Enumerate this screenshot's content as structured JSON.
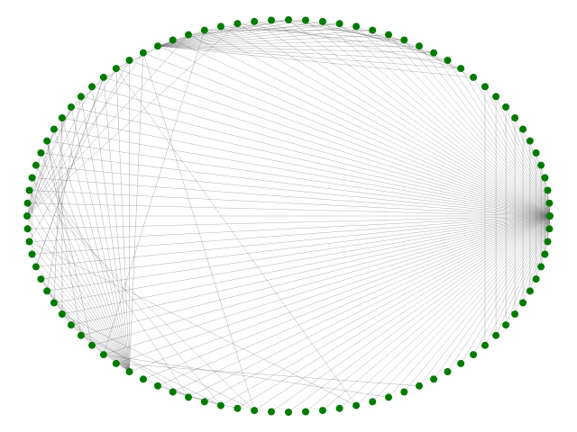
{
  "graph": {
    "layout": "circular",
    "node_count": 96,
    "node_color": "#007a00",
    "edge_color": "#6e6e6e",
    "background": "#ffffff",
    "hub_node": 24,
    "edges": [
      [
        24,
        0
      ],
      [
        24,
        1
      ],
      [
        24,
        2
      ],
      [
        24,
        3
      ],
      [
        24,
        4
      ],
      [
        24,
        5
      ],
      [
        24,
        6
      ],
      [
        24,
        7
      ],
      [
        24,
        8
      ],
      [
        24,
        9
      ],
      [
        24,
        10
      ],
      [
        24,
        11
      ],
      [
        24,
        12
      ],
      [
        24,
        13
      ],
      [
        24,
        14
      ],
      [
        24,
        15
      ],
      [
        24,
        16
      ],
      [
        24,
        17
      ],
      [
        24,
        18
      ],
      [
        24,
        19
      ],
      [
        24,
        20
      ],
      [
        24,
        21
      ],
      [
        24,
        22
      ],
      [
        24,
        23
      ],
      [
        24,
        25
      ],
      [
        24,
        26
      ],
      [
        24,
        27
      ],
      [
        24,
        28
      ],
      [
        24,
        29
      ],
      [
        24,
        30
      ],
      [
        24,
        31
      ],
      [
        24,
        32
      ],
      [
        24,
        33
      ],
      [
        24,
        34
      ],
      [
        24,
        35
      ],
      [
        24,
        36
      ],
      [
        24,
        37
      ],
      [
        24,
        38
      ],
      [
        24,
        39
      ],
      [
        24,
        40
      ],
      [
        24,
        41
      ],
      [
        24,
        42
      ],
      [
        24,
        43
      ],
      [
        24,
        44
      ],
      [
        24,
        45
      ],
      [
        24,
        46
      ],
      [
        24,
        47
      ],
      [
        24,
        48
      ],
      [
        24,
        49
      ],
      [
        24,
        50
      ],
      [
        24,
        51
      ],
      [
        24,
        52
      ],
      [
        24,
        53
      ],
      [
        24,
        54
      ],
      [
        24,
        55
      ],
      [
        24,
        56
      ],
      [
        24,
        57
      ],
      [
        24,
        58
      ],
      [
        24,
        59
      ],
      [
        24,
        60
      ],
      [
        24,
        61
      ],
      [
        24,
        62
      ],
      [
        24,
        63
      ],
      [
        24,
        64
      ],
      [
        24,
        65
      ],
      [
        24,
        66
      ],
      [
        24,
        67
      ],
      [
        24,
        68
      ],
      [
        24,
        69
      ],
      [
        24,
        70
      ],
      [
        24,
        71
      ],
      [
        24,
        72
      ],
      [
        24,
        73
      ],
      [
        24,
        74
      ],
      [
        24,
        75
      ],
      [
        24,
        76
      ],
      [
        24,
        77
      ],
      [
        24,
        78
      ],
      [
        24,
        79
      ],
      [
        24,
        80
      ],
      [
        24,
        81
      ],
      [
        24,
        82
      ],
      [
        24,
        83
      ],
      [
        24,
        84
      ],
      [
        24,
        85
      ],
      [
        24,
        86
      ],
      [
        24,
        87
      ],
      [
        24,
        88
      ],
      [
        24,
        89
      ],
      [
        24,
        90
      ],
      [
        24,
        91
      ],
      [
        24,
        92
      ],
      [
        24,
        93
      ],
      [
        24,
        94
      ],
      [
        24,
        95
      ],
      [
        23,
        25
      ],
      [
        22,
        26
      ],
      [
        21,
        27
      ],
      [
        20,
        28
      ],
      [
        19,
        29
      ],
      [
        18,
        30
      ],
      [
        17,
        31
      ],
      [
        16,
        32
      ],
      [
        15,
        33
      ],
      [
        14,
        34
      ],
      [
        13,
        35
      ],
      [
        58,
        61
      ],
      [
        58,
        62
      ],
      [
        58,
        63
      ],
      [
        58,
        64
      ],
      [
        58,
        65
      ],
      [
        58,
        66
      ],
      [
        58,
        67
      ],
      [
        58,
        68
      ],
      [
        58,
        69
      ],
      [
        58,
        70
      ],
      [
        58,
        71
      ],
      [
        58,
        72
      ],
      [
        58,
        73
      ],
      [
        58,
        74
      ],
      [
        58,
        75
      ],
      [
        58,
        76
      ],
      [
        58,
        77
      ],
      [
        58,
        78
      ],
      [
        58,
        79
      ],
      [
        58,
        80
      ],
      [
        58,
        81
      ],
      [
        58,
        82
      ],
      [
        58,
        83
      ],
      [
        58,
        84
      ],
      [
        58,
        85
      ],
      [
        58,
        86
      ],
      [
        58,
        87
      ],
      [
        88,
        91
      ],
      [
        88,
        92
      ],
      [
        88,
        93
      ],
      [
        88,
        94
      ],
      [
        88,
        95
      ],
      [
        88,
        0
      ],
      [
        88,
        1
      ],
      [
        88,
        2
      ],
      [
        88,
        3
      ],
      [
        88,
        4
      ],
      [
        88,
        5
      ],
      [
        88,
        6
      ],
      [
        88,
        7
      ],
      [
        88,
        8
      ],
      [
        88,
        9
      ],
      [
        88,
        10
      ],
      [
        88,
        11
      ],
      [
        88,
        12
      ],
      [
        72,
        77
      ],
      [
        72,
        79
      ],
      [
        72,
        81
      ],
      [
        72,
        83
      ],
      [
        72,
        85
      ],
      [
        72,
        87
      ],
      [
        72,
        90
      ],
      [
        72,
        93
      ],
      [
        74,
        50
      ],
      [
        75,
        52
      ],
      [
        76,
        54
      ],
      [
        59,
        40
      ],
      [
        60,
        42
      ],
      [
        70,
        44
      ],
      [
        57,
        53
      ],
      [
        56,
        52
      ],
      [
        55,
        51
      ],
      [
        66,
        60
      ],
      [
        67,
        61
      ],
      [
        62,
        52
      ],
      [
        63,
        54
      ],
      [
        64,
        50
      ],
      [
        90,
        3
      ],
      [
        91,
        5
      ],
      [
        92,
        7
      ],
      [
        93,
        9
      ],
      [
        94,
        11
      ],
      [
        95,
        1
      ],
      [
        89,
        0
      ],
      [
        86,
        70
      ],
      [
        84,
        68
      ],
      [
        82,
        66
      ],
      [
        80,
        64
      ],
      [
        78,
        62
      ],
      [
        60,
        91
      ],
      [
        85,
        44
      ],
      [
        87,
        50
      ],
      [
        61,
        78
      ],
      [
        65,
        80
      ],
      [
        68,
        84
      ],
      [
        9,
        1
      ],
      [
        10,
        2
      ],
      [
        11,
        4
      ],
      [
        12,
        6
      ],
      [
        8,
        0
      ],
      [
        7,
        95
      ],
      [
        69,
        75
      ],
      [
        71,
        79
      ],
      [
        73,
        81
      ],
      [
        62,
        66
      ],
      [
        63,
        67
      ],
      [
        85,
        89
      ],
      [
        83,
        88
      ],
      [
        81,
        86
      ],
      [
        79,
        84
      ],
      [
        77,
        82
      ]
    ]
  }
}
